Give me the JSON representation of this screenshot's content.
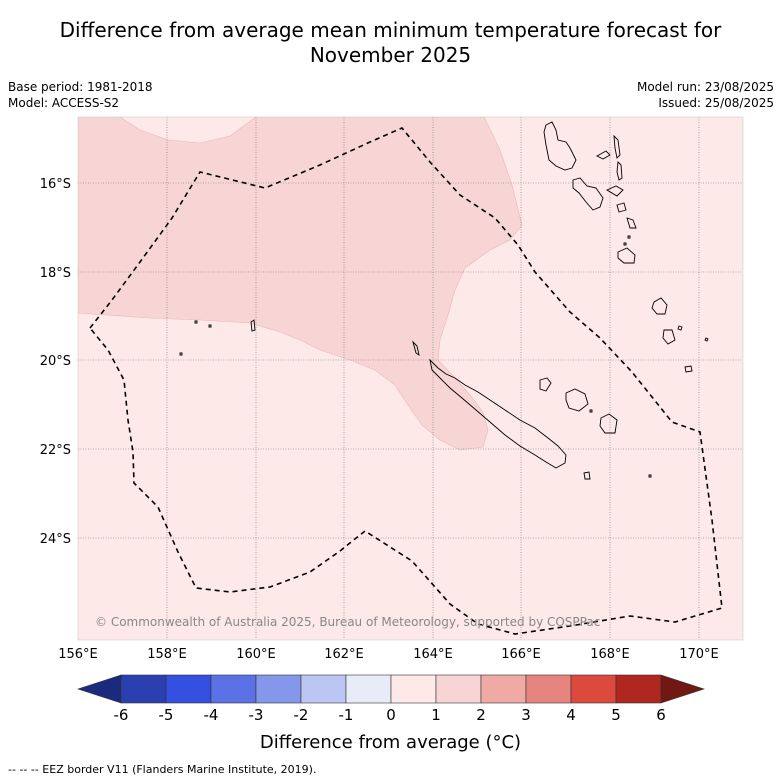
{
  "title_line1": "Difference from average mean minimum temperature forecast for",
  "title_line2": "November 2025",
  "base_period": "Base period: 1981-2018",
  "model": "Model: ACCESS-S2",
  "model_run": "Model run: 23/08/2025",
  "issued": "Issued: 25/08/2025",
  "copyright": "© Commonwealth of Australia 2025, Bureau of Meteorology, supported by COSPPac",
  "lat_labels": [
    "16°S",
    "18°S",
    "20°S",
    "22°S",
    "24°S"
  ],
  "lon_labels": [
    "156°E",
    "158°E",
    "160°E",
    "162°E",
    "164°E",
    "166°E",
    "168°E",
    "170°E"
  ],
  "colorbar": {
    "title": "Difference from average (°C)",
    "ticks": [
      "-6",
      "-5",
      "-4",
      "-3",
      "-2",
      "-1",
      "0",
      "1",
      "2",
      "3",
      "4",
      "5",
      "6"
    ],
    "colors": [
      "#1c2a7d",
      "#2a3fb0",
      "#3350e0",
      "#5a72e6",
      "#8497eb",
      "#bcc6f2",
      "#e8ecf9",
      "#fce9e8",
      "#f6d5d4",
      "#efaaa6",
      "#e6847d",
      "#dc4a3e",
      "#b0271f",
      "#701812"
    ]
  },
  "map_colors": {
    "category_0_1": "#fce9e8",
    "category_1_2": "#f6d5d4"
  },
  "footer": "--  --  -- EEZ border V11 (Flanders Marine Institute, 2019)."
}
